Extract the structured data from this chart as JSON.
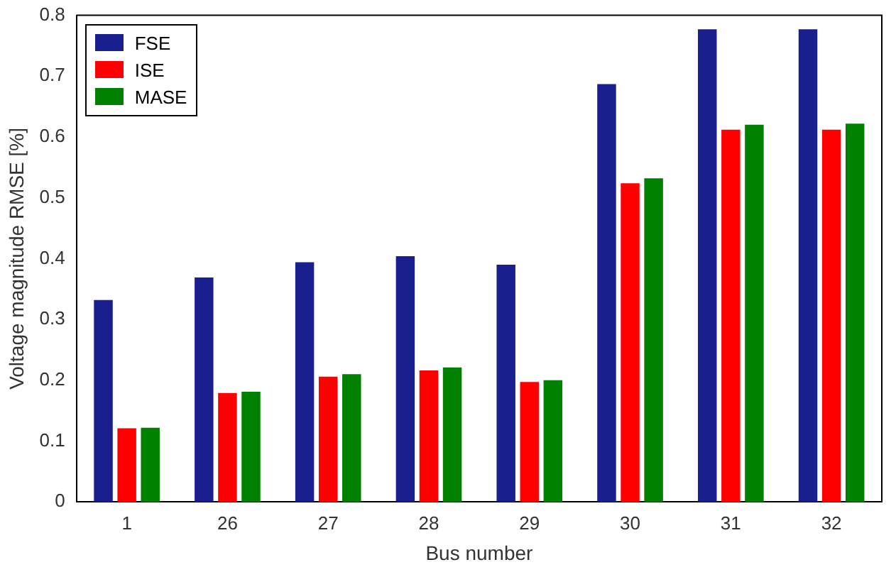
{
  "chart_data": {
    "type": "bar",
    "xlabel": "Bus number",
    "ylabel": "Voltage magnitude RMSE [%]",
    "categories": [
      "1",
      "26",
      "27",
      "28",
      "29",
      "30",
      "31",
      "32"
    ],
    "series": [
      {
        "name": "FSE",
        "color": "#1a1f8f",
        "values": [
          0.332,
          0.369,
          0.394,
          0.404,
          0.39,
          0.687,
          0.777,
          0.777
        ]
      },
      {
        "name": "ISE",
        "color": "#ff0000",
        "values": [
          0.121,
          0.179,
          0.206,
          0.216,
          0.197,
          0.524,
          0.612,
          0.612
        ]
      },
      {
        "name": "MASE",
        "color": "#008000",
        "values": [
          0.122,
          0.181,
          0.21,
          0.221,
          0.2,
          0.532,
          0.62,
          0.622
        ]
      }
    ],
    "ylim": [
      0,
      0.8
    ],
    "yticks": [
      0,
      0.1,
      0.2,
      0.3,
      0.4,
      0.5,
      0.6,
      0.7,
      0.8
    ],
    "grid": false,
    "legend": "top left"
  }
}
